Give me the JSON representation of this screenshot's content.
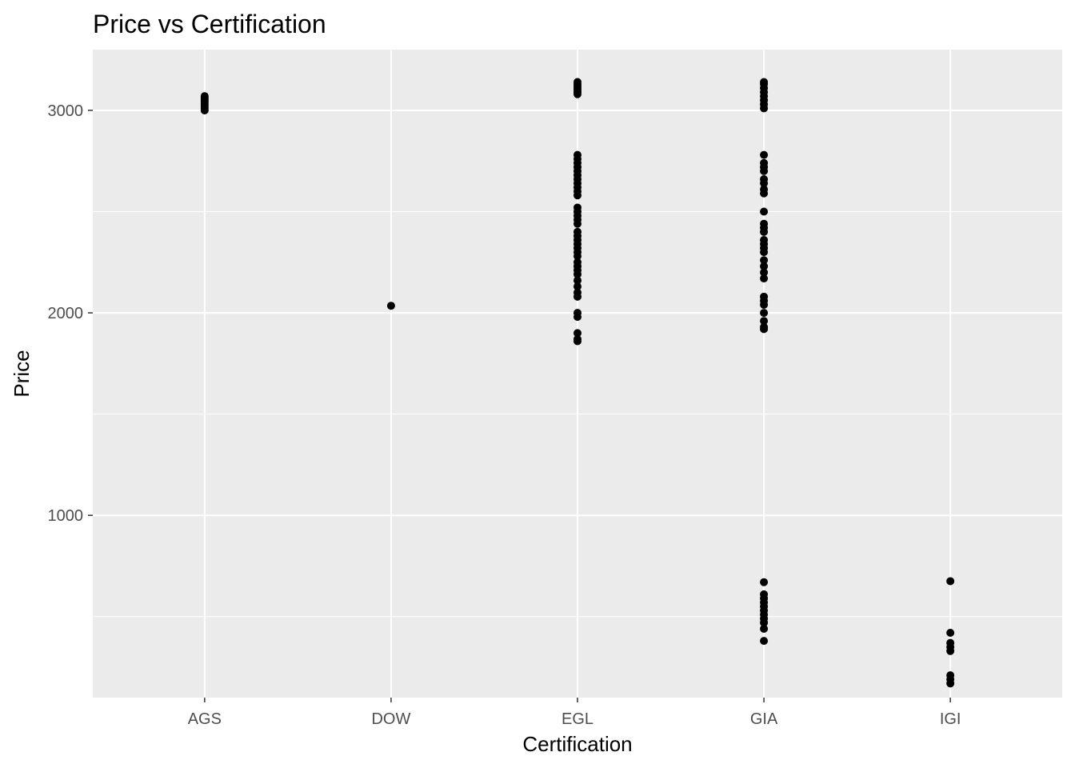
{
  "chart_data": {
    "type": "scatter",
    "title": "Price vs Certification",
    "xlabel": "Certification",
    "ylabel": "Price",
    "categories": [
      "AGS",
      "DOW",
      "EGL",
      "GIA",
      "IGI"
    ],
    "yticks": [
      1000,
      2000,
      3000
    ],
    "ylim": [
      100,
      3300
    ],
    "grid": true,
    "panel_color": "#ebebeb",
    "point_color": "#000000",
    "series": [
      {
        "points": [
          {
            "x": "AGS",
            "y": 3000
          },
          {
            "x": "AGS",
            "y": 3010
          },
          {
            "x": "AGS",
            "y": 3020
          },
          {
            "x": "AGS",
            "y": 3030
          },
          {
            "x": "AGS",
            "y": 3040
          },
          {
            "x": "AGS",
            "y": 3050
          },
          {
            "x": "AGS",
            "y": 3060
          },
          {
            "x": "AGS",
            "y": 3070
          },
          {
            "x": "DOW",
            "y": 2035
          },
          {
            "x": "EGL",
            "y": 3080
          },
          {
            "x": "EGL",
            "y": 3090
          },
          {
            "x": "EGL",
            "y": 3100
          },
          {
            "x": "EGL",
            "y": 3110
          },
          {
            "x": "EGL",
            "y": 3120
          },
          {
            "x": "EGL",
            "y": 3130
          },
          {
            "x": "EGL",
            "y": 3140
          },
          {
            "x": "EGL",
            "y": 2780
          },
          {
            "x": "EGL",
            "y": 2760
          },
          {
            "x": "EGL",
            "y": 2740
          },
          {
            "x": "EGL",
            "y": 2720
          },
          {
            "x": "EGL",
            "y": 2700
          },
          {
            "x": "EGL",
            "y": 2680
          },
          {
            "x": "EGL",
            "y": 2660
          },
          {
            "x": "EGL",
            "y": 2640
          },
          {
            "x": "EGL",
            "y": 2620
          },
          {
            "x": "EGL",
            "y": 2600
          },
          {
            "x": "EGL",
            "y": 2580
          },
          {
            "x": "EGL",
            "y": 2520
          },
          {
            "x": "EGL",
            "y": 2500
          },
          {
            "x": "EGL",
            "y": 2480
          },
          {
            "x": "EGL",
            "y": 2460
          },
          {
            "x": "EGL",
            "y": 2440
          },
          {
            "x": "EGL",
            "y": 2400
          },
          {
            "x": "EGL",
            "y": 2380
          },
          {
            "x": "EGL",
            "y": 2360
          },
          {
            "x": "EGL",
            "y": 2340
          },
          {
            "x": "EGL",
            "y": 2320
          },
          {
            "x": "EGL",
            "y": 2300
          },
          {
            "x": "EGL",
            "y": 2280
          },
          {
            "x": "EGL",
            "y": 2250
          },
          {
            "x": "EGL",
            "y": 2230
          },
          {
            "x": "EGL",
            "y": 2210
          },
          {
            "x": "EGL",
            "y": 2190
          },
          {
            "x": "EGL",
            "y": 2160
          },
          {
            "x": "EGL",
            "y": 2130
          },
          {
            "x": "EGL",
            "y": 2100
          },
          {
            "x": "EGL",
            "y": 2080
          },
          {
            "x": "EGL",
            "y": 2000
          },
          {
            "x": "EGL",
            "y": 1980
          },
          {
            "x": "EGL",
            "y": 1900
          },
          {
            "x": "EGL",
            "y": 1870
          },
          {
            "x": "EGL",
            "y": 1860
          },
          {
            "x": "GIA",
            "y": 3010
          },
          {
            "x": "GIA",
            "y": 3030
          },
          {
            "x": "GIA",
            "y": 3050
          },
          {
            "x": "GIA",
            "y": 3070
          },
          {
            "x": "GIA",
            "y": 3090
          },
          {
            "x": "GIA",
            "y": 3110
          },
          {
            "x": "GIA",
            "y": 3130
          },
          {
            "x": "GIA",
            "y": 3140
          },
          {
            "x": "GIA",
            "y": 2780
          },
          {
            "x": "GIA",
            "y": 2740
          },
          {
            "x": "GIA",
            "y": 2720
          },
          {
            "x": "GIA",
            "y": 2700
          },
          {
            "x": "GIA",
            "y": 2660
          },
          {
            "x": "GIA",
            "y": 2640
          },
          {
            "x": "GIA",
            "y": 2610
          },
          {
            "x": "GIA",
            "y": 2590
          },
          {
            "x": "GIA",
            "y": 2500
          },
          {
            "x": "GIA",
            "y": 2440
          },
          {
            "x": "GIA",
            "y": 2420
          },
          {
            "x": "GIA",
            "y": 2400
          },
          {
            "x": "GIA",
            "y": 2360
          },
          {
            "x": "GIA",
            "y": 2340
          },
          {
            "x": "GIA",
            "y": 2320
          },
          {
            "x": "GIA",
            "y": 2300
          },
          {
            "x": "GIA",
            "y": 2260
          },
          {
            "x": "GIA",
            "y": 2230
          },
          {
            "x": "GIA",
            "y": 2200
          },
          {
            "x": "GIA",
            "y": 2170
          },
          {
            "x": "GIA",
            "y": 2080
          },
          {
            "x": "GIA",
            "y": 2060
          },
          {
            "x": "GIA",
            "y": 2040
          },
          {
            "x": "GIA",
            "y": 2000
          },
          {
            "x": "GIA",
            "y": 1960
          },
          {
            "x": "GIA",
            "y": 1930
          },
          {
            "x": "GIA",
            "y": 1920
          },
          {
            "x": "GIA",
            "y": 670
          },
          {
            "x": "GIA",
            "y": 610
          },
          {
            "x": "GIA",
            "y": 590
          },
          {
            "x": "GIA",
            "y": 570
          },
          {
            "x": "GIA",
            "y": 550
          },
          {
            "x": "GIA",
            "y": 530
          },
          {
            "x": "GIA",
            "y": 510
          },
          {
            "x": "GIA",
            "y": 490
          },
          {
            "x": "GIA",
            "y": 470
          },
          {
            "x": "GIA",
            "y": 440
          },
          {
            "x": "GIA",
            "y": 380
          },
          {
            "x": "IGI",
            "y": 675
          },
          {
            "x": "IGI",
            "y": 420
          },
          {
            "x": "IGI",
            "y": 370
          },
          {
            "x": "IGI",
            "y": 350
          },
          {
            "x": "IGI",
            "y": 330
          },
          {
            "x": "IGI",
            "y": 210
          },
          {
            "x": "IGI",
            "y": 190
          },
          {
            "x": "IGI",
            "y": 170
          }
        ]
      }
    ]
  }
}
